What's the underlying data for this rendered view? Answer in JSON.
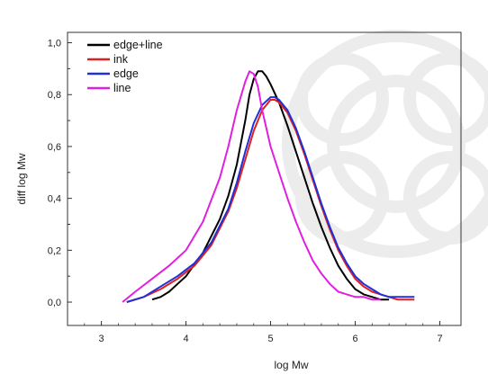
{
  "chart_data": {
    "type": "line",
    "title": "",
    "xlabel": "log Mw",
    "ylabel": "diff log Mw",
    "xlim": [
      2.6,
      7.25
    ],
    "ylim": [
      -0.09,
      1.04
    ],
    "x_ticks": [
      3,
      4,
      5,
      6,
      7
    ],
    "x_tick_labels": [
      "3",
      "4",
      "5",
      "6",
      "7"
    ],
    "y_ticks": [
      0.0,
      0.2,
      0.4,
      0.6,
      0.8,
      1.0
    ],
    "y_tick_labels": [
      "0,0",
      "0,2",
      "0,4",
      "0,6",
      "0,8",
      "1,0"
    ],
    "grid": false,
    "legend_position": "top-left",
    "series": [
      {
        "name": "edge+line",
        "color": "#000000",
        "x": [
          3.6,
          3.7,
          3.8,
          3.9,
          4.0,
          4.2,
          4.4,
          4.5,
          4.6,
          4.7,
          4.75,
          4.8,
          4.85,
          4.9,
          4.95,
          5.0,
          5.1,
          5.2,
          5.3,
          5.4,
          5.5,
          5.6,
          5.7,
          5.8,
          5.9,
          6.0,
          6.1,
          6.2,
          6.3,
          6.4
        ],
        "y": [
          0.01,
          0.02,
          0.04,
          0.07,
          0.1,
          0.19,
          0.32,
          0.41,
          0.53,
          0.7,
          0.8,
          0.86,
          0.89,
          0.89,
          0.87,
          0.84,
          0.77,
          0.68,
          0.58,
          0.48,
          0.38,
          0.29,
          0.21,
          0.14,
          0.09,
          0.05,
          0.03,
          0.02,
          0.01,
          0.01
        ]
      },
      {
        "name": "ink",
        "color": "#e02020",
        "x": [
          3.3,
          3.5,
          3.7,
          3.9,
          4.1,
          4.3,
          4.5,
          4.6,
          4.7,
          4.8,
          4.9,
          5.0,
          5.05,
          5.1,
          5.2,
          5.3,
          5.4,
          5.5,
          5.6,
          5.7,
          5.8,
          5.9,
          6.0,
          6.1,
          6.2,
          6.3,
          6.4,
          6.5,
          6.6,
          6.7
        ],
        "y": [
          0.0,
          0.02,
          0.05,
          0.09,
          0.14,
          0.22,
          0.35,
          0.44,
          0.55,
          0.66,
          0.74,
          0.78,
          0.78,
          0.77,
          0.73,
          0.66,
          0.57,
          0.47,
          0.37,
          0.28,
          0.2,
          0.14,
          0.09,
          0.06,
          0.04,
          0.03,
          0.02,
          0.01,
          0.01,
          0.01
        ]
      },
      {
        "name": "edge",
        "color": "#2030d8",
        "x": [
          3.3,
          3.5,
          3.7,
          3.9,
          4.1,
          4.3,
          4.5,
          4.6,
          4.7,
          4.8,
          4.9,
          5.0,
          5.05,
          5.1,
          5.2,
          5.3,
          5.4,
          5.5,
          5.6,
          5.7,
          5.8,
          5.9,
          6.0,
          6.1,
          6.2,
          6.3,
          6.4,
          6.5,
          6.6,
          6.7
        ],
        "y": [
          0.0,
          0.02,
          0.06,
          0.1,
          0.15,
          0.23,
          0.36,
          0.46,
          0.58,
          0.69,
          0.76,
          0.79,
          0.79,
          0.78,
          0.74,
          0.67,
          0.58,
          0.48,
          0.38,
          0.29,
          0.21,
          0.15,
          0.1,
          0.07,
          0.05,
          0.03,
          0.02,
          0.02,
          0.02,
          0.02
        ]
      },
      {
        "name": "line",
        "color": "#e020e0",
        "x": [
          3.25,
          3.4,
          3.6,
          3.8,
          4.0,
          4.2,
          4.4,
          4.5,
          4.6,
          4.7,
          4.75,
          4.8,
          4.85,
          4.9,
          5.0,
          5.1,
          5.2,
          5.3,
          5.4,
          5.5,
          5.6,
          5.7,
          5.8,
          5.9,
          6.0,
          6.1,
          6.2,
          6.3
        ],
        "y": [
          0.0,
          0.04,
          0.09,
          0.14,
          0.2,
          0.31,
          0.48,
          0.6,
          0.74,
          0.85,
          0.89,
          0.88,
          0.83,
          0.74,
          0.6,
          0.5,
          0.4,
          0.31,
          0.23,
          0.16,
          0.11,
          0.07,
          0.04,
          0.03,
          0.02,
          0.02,
          0.01,
          0.01
        ]
      }
    ]
  }
}
